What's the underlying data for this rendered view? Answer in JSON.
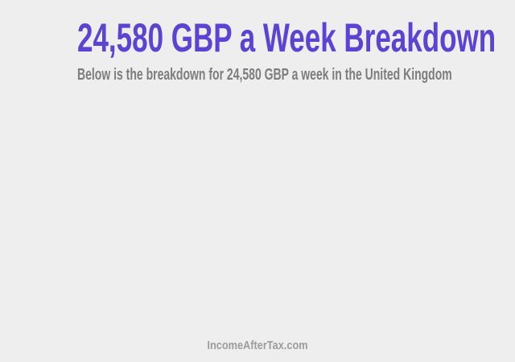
{
  "page": {
    "title": "24,580 GBP a Week Breakdown",
    "subtitle": "Below is the breakdown for 24,580 GBP a week in the United Kingdom",
    "watermark": "IncomeAfterTax.com"
  },
  "colors": {
    "background": "#eeeeee",
    "title": "#5c43d4",
    "subtitle": "#7d7d7d",
    "watermark": "#9c9c9c"
  }
}
